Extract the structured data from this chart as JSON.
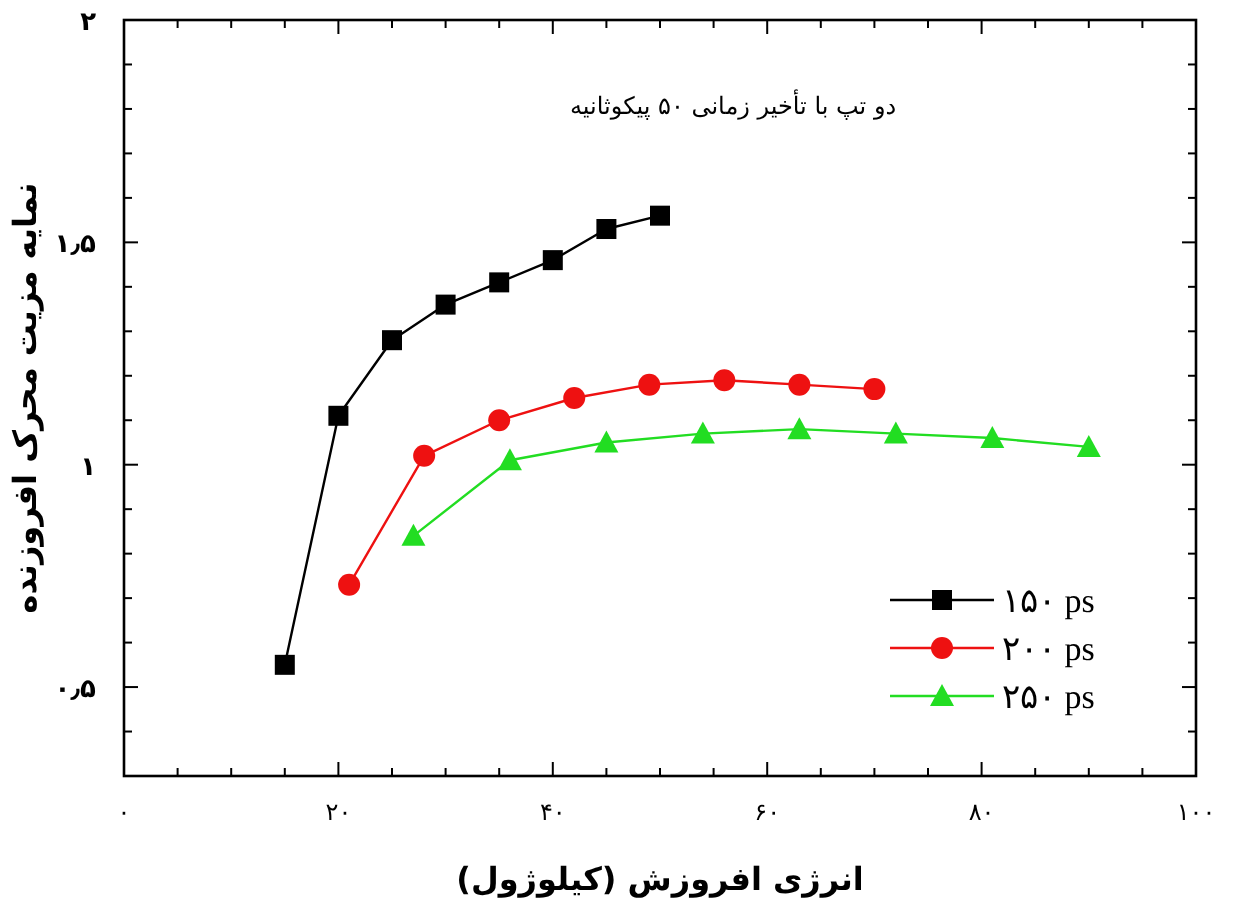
{
  "chart_data": {
    "type": "line",
    "xlabel": "انرژی افروزش (کیلوژول)",
    "ylabel": "نمایه مزیت محرک افروزنده",
    "annotations": [
      "دو تپ با تأخیر زمانی ۵۰ پیکوثانیه"
    ],
    "xlim": [
      0,
      100
    ],
    "xticks": [
      {
        "value": 0,
        "label": "۰"
      },
      {
        "value": 5,
        "label": null
      },
      {
        "value": 10,
        "label": null
      },
      {
        "value": 15,
        "label": null
      },
      {
        "value": 20,
        "label": "۲۰"
      },
      {
        "value": 25,
        "label": null
      },
      {
        "value": 30,
        "label": null
      },
      {
        "value": 35,
        "label": null
      },
      {
        "value": 40,
        "label": "۴۰"
      },
      {
        "value": 45,
        "label": null
      },
      {
        "value": 50,
        "label": null
      },
      {
        "value": 55,
        "label": null
      },
      {
        "value": 60,
        "label": "۶۰"
      },
      {
        "value": 65,
        "label": null
      },
      {
        "value": 70,
        "label": null
      },
      {
        "value": 75,
        "label": null
      },
      {
        "value": 80,
        "label": "۸۰"
      },
      {
        "value": 85,
        "label": null
      },
      {
        "value": 90,
        "label": null
      },
      {
        "value": 95,
        "label": null
      },
      {
        "value": 100,
        "label": "۱۰۰"
      }
    ],
    "ylim": [
      0.3,
      2
    ],
    "yticks": [
      {
        "value": 0.4,
        "label": null
      },
      {
        "value": 0.5,
        "label": "۰٫۵"
      },
      {
        "value": 0.6,
        "label": null
      },
      {
        "value": 0.7,
        "label": null
      },
      {
        "value": 0.8,
        "label": null
      },
      {
        "value": 0.9,
        "label": null
      },
      {
        "value": 1,
        "label": "۱"
      },
      {
        "value": 1.1,
        "label": null
      },
      {
        "value": 1.2,
        "label": null
      },
      {
        "value": 1.3,
        "label": null
      },
      {
        "value": 1.4,
        "label": null
      },
      {
        "value": 1.5,
        "label": "۱٫۵"
      },
      {
        "value": 1.6,
        "label": null
      },
      {
        "value": 1.7,
        "label": null
      },
      {
        "value": 1.8,
        "label": null
      },
      {
        "value": 1.9,
        "label": null
      },
      {
        "value": 2,
        "label": "۲"
      }
    ],
    "grid": false,
    "legend": "bottom right",
    "series": [
      {
        "name": "۱۵۰ ps",
        "color": "#000000",
        "marker": "square",
        "x": [
          15,
          20,
          25,
          30,
          35,
          40,
          45,
          50
        ],
        "values": [
          0.55,
          1.11,
          1.28,
          1.36,
          1.41,
          1.46,
          1.53,
          1.56
        ]
      },
      {
        "name": "۲۰۰ ps",
        "color": "#ee1111",
        "marker": "circle",
        "x": [
          21,
          28,
          35,
          42,
          49,
          56,
          63,
          70
        ],
        "values": [
          0.73,
          1.02,
          1.1,
          1.15,
          1.18,
          1.19,
          1.18,
          1.17
        ]
      },
      {
        "name": "۲۵۰ ps",
        "color": "#22dd22",
        "marker": "triangle",
        "x": [
          27,
          36,
          45,
          54,
          63,
          72,
          81,
          90
        ],
        "values": [
          0.84,
          1.01,
          1.05,
          1.07,
          1.08,
          1.07,
          1.06,
          1.04
        ]
      }
    ]
  }
}
